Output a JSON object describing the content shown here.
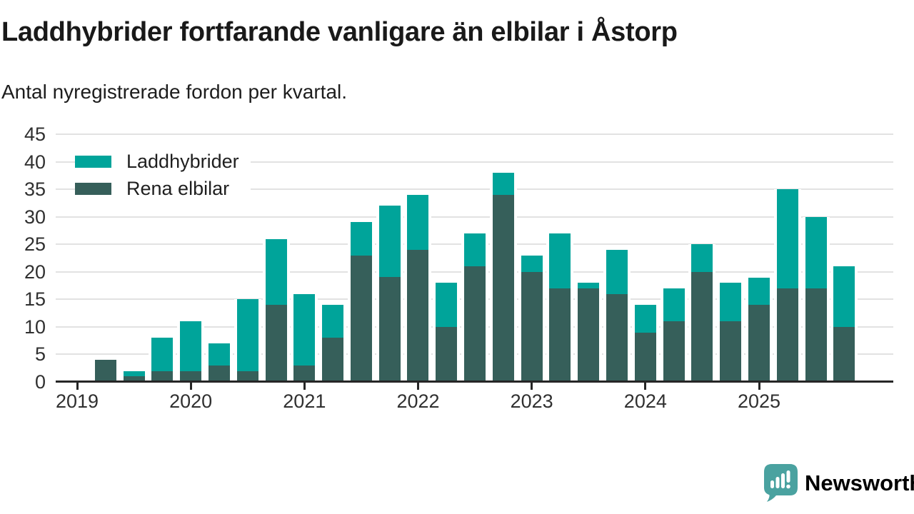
{
  "chart_data": {
    "type": "bar",
    "stacked": true,
    "title": "Laddhybrider fortfarande vanligare än elbilar i Åstorp",
    "subtitle": "Antal nyregistrerade fordon per kvartal.",
    "categories": [
      "2019 Q2",
      "2019 Q3",
      "2019 Q4",
      "2020 Q1",
      "2020 Q2",
      "2020 Q3",
      "2020 Q4",
      "2021 Q1",
      "2021 Q2",
      "2021 Q3",
      "2021 Q4",
      "2022 Q1",
      "2022 Q2",
      "2022 Q3",
      "2022 Q4",
      "2023 Q1",
      "2023 Q2",
      "2023 Q3",
      "2023 Q4",
      "2024 Q1",
      "2024 Q2",
      "2024 Q3",
      "2024 Q4",
      "2025 Q1",
      "2025 Q2",
      "2025 Q3",
      "2025 Q4"
    ],
    "series": [
      {
        "name": "Laddhybrider",
        "color": "#00a49a",
        "stack_position": "top",
        "values": [
          0,
          1,
          6,
          9,
          4,
          13,
          12,
          13,
          6,
          6,
          13,
          10,
          8,
          6,
          4,
          3,
          10,
          1,
          8,
          5,
          6,
          5,
          7,
          5,
          18,
          13,
          11
        ]
      },
      {
        "name": "Rena elbilar",
        "color": "#365f5a",
        "stack_position": "bottom",
        "values": [
          4,
          1,
          2,
          2,
          3,
          2,
          14,
          3,
          8,
          23,
          19,
          24,
          10,
          21,
          34,
          20,
          17,
          17,
          16,
          9,
          11,
          20,
          11,
          14,
          17,
          17,
          10
        ]
      }
    ],
    "totals": [
      4,
      2,
      8,
      11,
      7,
      15,
      26,
      16,
      14,
      29,
      32,
      34,
      18,
      27,
      38,
      23,
      27,
      18,
      24,
      14,
      17,
      25,
      18,
      19,
      35,
      30,
      21
    ],
    "y_ticks": [
      0,
      5,
      10,
      15,
      20,
      25,
      30,
      35,
      40,
      45
    ],
    "ylim": [
      0,
      45
    ],
    "x_year_labels": [
      "2019",
      "2020",
      "2021",
      "2022",
      "2023",
      "2024",
      "2025"
    ],
    "first_bar_quarter_offset": 1,
    "quarters_per_year": 4,
    "legend_position": "top-left-inside",
    "grid": "horizontal",
    "gridline_color": "#e2e2e2",
    "axis_color": "#262626",
    "label_color": "#303030"
  },
  "footer": {
    "brand": "Newsworthy",
    "brand_color": "#4aa2a0",
    "logo_icon": "newsworthy-speech-bubble-bar-chart-icon"
  }
}
